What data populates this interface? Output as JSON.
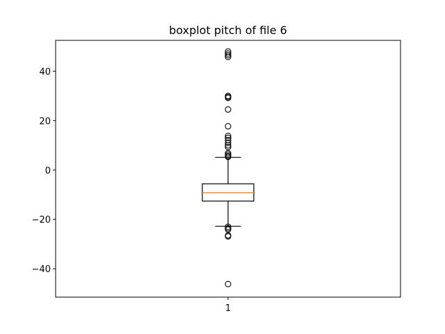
{
  "chart_data": {
    "type": "boxplot",
    "title": "boxplot pitch of file 6",
    "xlabel": "",
    "ylabel": "",
    "categories": [
      "1"
    ],
    "ylim": [
      -51.5,
      52.5
    ],
    "yticks": [
      -40,
      -20,
      0,
      20,
      40
    ],
    "ytick_labels": [
      "−40",
      "−20",
      "0",
      "20",
      "40"
    ],
    "grid": false,
    "box": {
      "whisker_low": -22.8,
      "q1": -12.6,
      "median": -9.2,
      "q3": -5.6,
      "whisker_high": 5.1
    },
    "outliers": [
      48.0,
      47.2,
      46.5,
      45.8,
      30.0,
      29.6,
      29.2,
      24.5,
      17.7,
      13.8,
      13.0,
      12.1,
      11.0,
      10.0,
      9.3,
      6.8,
      6.2,
      5.6,
      5.3,
      -23.0,
      -23.6,
      -24.1,
      -26.5,
      -26.9,
      -46.2
    ],
    "colors": {
      "box": "#000000",
      "median": "#ff7f0e",
      "outlier_edge": "#000000"
    }
  }
}
